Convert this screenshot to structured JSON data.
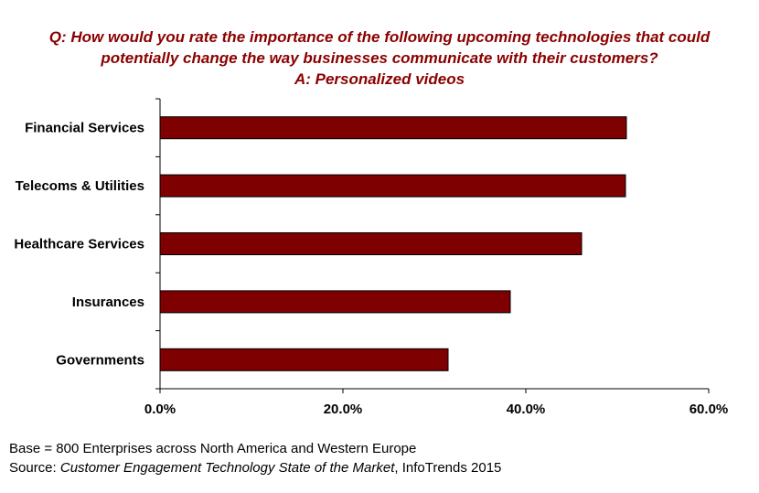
{
  "chart_data": {
    "type": "bar",
    "orientation": "horizontal",
    "title_lines": [
      "Q: How would you rate the importance of the following upcoming technologies that could",
      "potentially change the way businesses communicate with their customers?",
      "A: Personalized videos"
    ],
    "categories": [
      "Financial Services",
      "Telecoms & Utilities",
      "Healthcare Services",
      "Insurances",
      "Governments"
    ],
    "values": [
      51.0,
      50.9,
      46.1,
      38.3,
      31.5
    ],
    "xlim": [
      0,
      60
    ],
    "x_ticks": [
      0,
      20,
      40,
      60
    ],
    "x_tick_labels": [
      "0.0%",
      "20.0%",
      "40.0%",
      "60.0%"
    ],
    "xlabel": "",
    "ylabel": "",
    "grid": false,
    "legend": "none",
    "bar_color": "#7f0000",
    "bar_edge_color": "#000000",
    "title_color": "#8b0000"
  },
  "footnotes": {
    "base": "Base = 800 Enterprises across North America and Western Europe",
    "source_prefix": "Source: ",
    "source_title": "Customer Engagement Technology State of the Market",
    "source_suffix": ", InfoTrends 2015"
  }
}
